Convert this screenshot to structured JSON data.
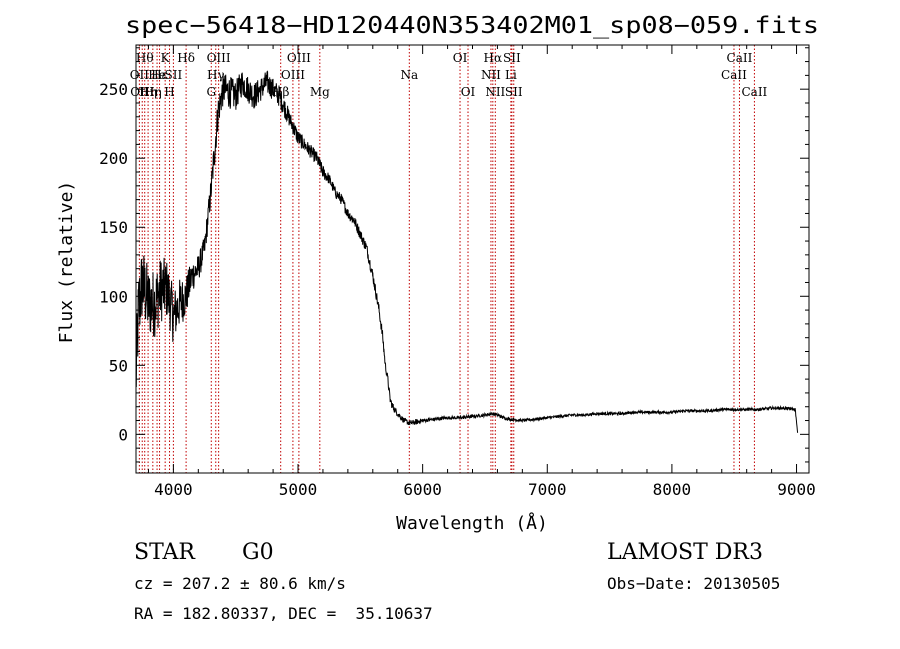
{
  "colors": {
    "axis": "#000000",
    "spectrum": "#000000",
    "line_marker": "#c00000",
    "background": "#ffffff"
  },
  "chart_data": {
    "type": "line",
    "title": "spec−56418−HD120440N353402M01_sp08−059.fits",
    "xlabel": "Wavelength (Å)",
    "ylabel": "Flux (relative)",
    "xlim": [
      3700,
      9100
    ],
    "ylim": [
      -28,
      282
    ],
    "xticks": [
      4000,
      5000,
      6000,
      7000,
      8000,
      9000
    ],
    "yticks": [
      0,
      50,
      100,
      150,
      200,
      250
    ],
    "xtick_labels": [
      "4000",
      "5000",
      "6000",
      "7000",
      "8000",
      "9000"
    ],
    "ytick_labels": [
      "0",
      "50",
      "100",
      "150",
      "200",
      "250"
    ],
    "series": [
      {
        "name": "flux",
        "x": [
          3700,
          3720,
          3750,
          3800,
          3850,
          3900,
          3950,
          4000,
          4050,
          4100,
          4150,
          4200,
          4250,
          4300,
          4330,
          4360,
          4400,
          4450,
          4500,
          4550,
          4600,
          4650,
          4700,
          4750,
          4800,
          4850,
          4900,
          4950,
          5000,
          5050,
          5100,
          5150,
          5200,
          5250,
          5300,
          5350,
          5400,
          5450,
          5500,
          5550,
          5600,
          5650,
          5680,
          5700,
          5720,
          5740,
          5760,
          5800,
          5850,
          5900,
          5950,
          6000,
          6100,
          6200,
          6300,
          6400,
          6500,
          6560,
          6600,
          6650,
          6700,
          6800,
          6900,
          7000,
          7100,
          7200,
          7300,
          7400,
          7500,
          7600,
          7700,
          7800,
          7900,
          8000,
          8100,
          8200,
          8300,
          8400,
          8500,
          8600,
          8700,
          8800,
          8900,
          8990,
          9010
        ],
        "y": [
          40,
          90,
          110,
          95,
          95,
          105,
          105,
          85,
          95,
          100,
          115,
          120,
          135,
          175,
          205,
          235,
          250,
          248,
          245,
          255,
          250,
          245,
          250,
          255,
          250,
          245,
          235,
          225,
          215,
          210,
          205,
          200,
          190,
          185,
          175,
          170,
          160,
          155,
          145,
          135,
          115,
          90,
          70,
          50,
          40,
          25,
          20,
          15,
          10,
          8,
          9,
          10,
          11,
          12,
          12,
          13,
          14,
          15,
          14,
          12,
          11,
          10,
          11,
          12,
          13,
          14,
          14,
          15,
          15,
          15,
          16,
          16,
          16,
          16,
          17,
          17,
          17,
          18,
          18,
          18,
          18,
          19,
          19,
          18,
          0
        ],
        "noise": [
          30,
          30,
          28,
          26,
          25,
          24,
          22,
          20,
          18,
          15,
          12,
          10,
          9,
          10,
          12,
          12,
          12,
          12,
          11,
          10,
          10,
          10,
          9,
          9,
          8,
          8,
          7,
          6,
          6,
          5,
          5,
          5,
          5,
          4,
          4,
          4,
          4,
          4,
          4,
          4,
          4,
          4,
          4,
          3,
          3,
          3,
          3,
          2,
          2,
          2,
          2,
          1.5,
          1.2,
          1.2,
          1.2,
          1.2,
          1.2,
          1.2,
          1.2,
          1.2,
          1.2,
          1,
          1,
          1,
          1,
          1,
          1,
          1,
          1,
          1,
          1,
          1,
          1,
          1,
          1,
          1,
          1,
          1,
          1,
          1,
          1,
          1,
          1,
          1,
          0
        ]
      }
    ],
    "line_markers": [
      {
        "wavelength": 3727,
        "label": "OII",
        "row": 2
      },
      {
        "wavelength": 3750,
        "label": "OIII",
        "row": 3
      },
      {
        "wavelength": 3770,
        "label": "Hθ",
        "row": 1
      },
      {
        "wavelength": 3797,
        "label": "Hη",
        "row": 3
      },
      {
        "wavelength": 3835,
        "label": "Hη",
        "row": 3
      },
      {
        "wavelength": 3869,
        "label": "He",
        "row": 2
      },
      {
        "wavelength": 3889,
        "label": "Hε",
        "row": 2
      },
      {
        "wavelength": 3934,
        "label": "K",
        "row": 1
      },
      {
        "wavelength": 3969,
        "label": "H",
        "row": 3
      },
      {
        "wavelength": 4000,
        "label": "SII",
        "row": 2
      },
      {
        "wavelength": 4102,
        "label": "Hδ",
        "row": 1
      },
      {
        "wavelength": 4304,
        "label": "G",
        "row": 3
      },
      {
        "wavelength": 4340,
        "label": "Hγ",
        "row": 2
      },
      {
        "wavelength": 4363,
        "label": "OIII",
        "row": 1
      },
      {
        "wavelength": 4861,
        "label": "Hβ",
        "row": 3
      },
      {
        "wavelength": 4959,
        "label": "OIII",
        "row": 2
      },
      {
        "wavelength": 5007,
        "label": "OIII",
        "row": 1
      },
      {
        "wavelength": 5175,
        "label": "Mg",
        "row": 3
      },
      {
        "wavelength": 5893,
        "label": "Na",
        "row": 2
      },
      {
        "wavelength": 6300,
        "label": "OI",
        "row": 1
      },
      {
        "wavelength": 6364,
        "label": "OI",
        "row": 3
      },
      {
        "wavelength": 6548,
        "label": "NII",
        "row": 2
      },
      {
        "wavelength": 6563,
        "label": "Hα",
        "row": 1
      },
      {
        "wavelength": 6583,
        "label": "NII",
        "row": 3
      },
      {
        "wavelength": 6708,
        "label": "Li",
        "row": 2
      },
      {
        "wavelength": 6716,
        "label": "SII",
        "row": 1
      },
      {
        "wavelength": 6731,
        "label": "SII",
        "row": 3
      },
      {
        "wavelength": 8498,
        "label": "CaII",
        "row": 2
      },
      {
        "wavelength": 8542,
        "label": "CaII",
        "row": 1
      },
      {
        "wavelength": 8662,
        "label": "CaII",
        "row": 3
      }
    ]
  },
  "info": {
    "object_class": "STAR",
    "subclass": "G0",
    "survey": "LAMOST DR3",
    "redshift_line": "cz = 207.2 ± 80.6 km/s",
    "obs_date": "Obs−Date: 20130505",
    "coords": "RA = 182.80337, DEC =  35.10637"
  }
}
